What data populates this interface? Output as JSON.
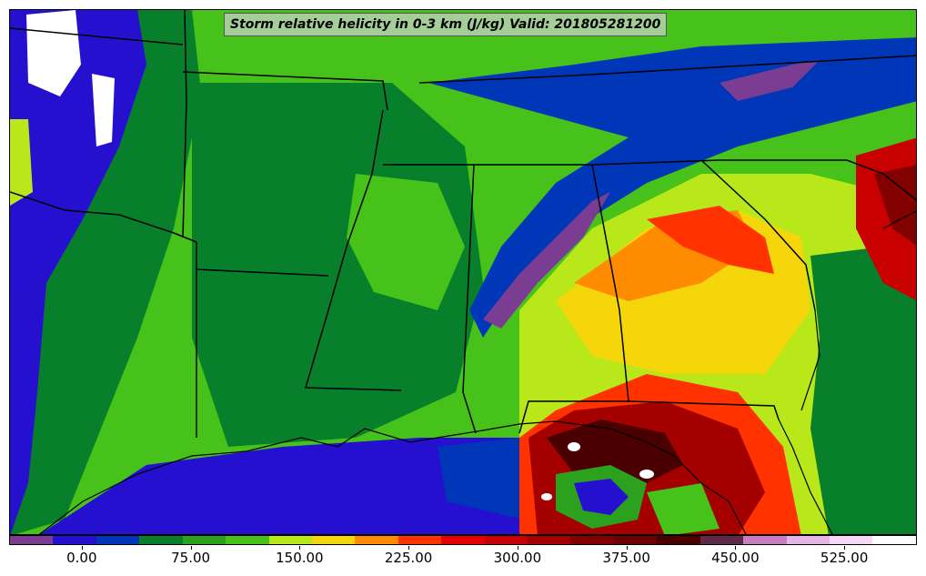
{
  "map": {
    "title": "Storm relative helicity in 0-3 km (J/kg) Valid: 201805281200",
    "palette": [
      "#7a3d92",
      "#2510d0",
      "#0036b8",
      "#087f2a",
      "#2ca11e",
      "#47c21a",
      "#b8e81a",
      "#f5d60a",
      "#ff8b00",
      "#ff3200",
      "#e60000",
      "#c80000",
      "#a50000",
      "#830000",
      "#6a0000",
      "#4a0000",
      "#5e2a4a",
      "#c97dbf",
      "#e6b4e6",
      "#f8d8f8",
      "#ffffff"
    ],
    "colorbar": {
      "min": -50,
      "max": 575,
      "ticks": [
        {
          "value": 0,
          "label": "0.00"
        },
        {
          "value": 75,
          "label": "75.00"
        },
        {
          "value": 150,
          "label": "150.00"
        },
        {
          "value": 225,
          "label": "225.00"
        },
        {
          "value": 300,
          "label": "300.00"
        },
        {
          "value": 375,
          "label": "375.00"
        },
        {
          "value": 450,
          "label": "450.00"
        },
        {
          "value": 525,
          "label": "525.00"
        }
      ]
    }
  }
}
